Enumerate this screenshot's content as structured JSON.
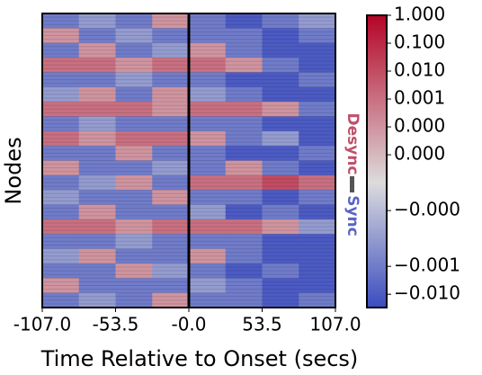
{
  "chart_data": {
    "type": "heatmap",
    "xlabel": "Time Relative to Onset (secs)",
    "ylabel": "Nodes",
    "annotations": [
      "Desync",
      "Sync"
    ],
    "xbins": [
      -107,
      -80.25,
      -53.5,
      -26.75,
      0,
      26.75,
      53.5,
      80.25,
      107
    ],
    "xlim": [
      -107,
      107
    ],
    "xticks": [
      {
        "value": -107,
        "label": "-107.0"
      },
      {
        "value": -53.5,
        "label": "-53.5"
      },
      {
        "value": 0,
        "label": "-0.0"
      },
      {
        "value": 53.5,
        "label": "53.5"
      },
      {
        "value": 107,
        "label": "107.0"
      }
    ],
    "onset": 0,
    "clim": [
      -0.03,
      1
    ],
    "symlog_linthresh": 1e-05,
    "cticks": [
      {
        "value": 1,
        "label": "1.000"
      },
      {
        "value": 0.1,
        "label": "0.100"
      },
      {
        "value": 0.01,
        "label": "0.010"
      },
      {
        "value": 0.001,
        "label": "0.001"
      },
      {
        "value": 0.0001,
        "label": "0.000"
      },
      {
        "value": 1e-05,
        "label": "0.000"
      },
      {
        "value": -1e-05,
        "label": "−0.000"
      },
      {
        "value": -0.001,
        "label": "−0.001"
      },
      {
        "value": -0.01,
        "label": "−0.010"
      }
    ],
    "colors": [
      "#3b4cc0",
      "#dcdcdc",
      "#b40426"
    ],
    "values": [
      [
        -0.001,
        -0.0001,
        -0.001,
        0.0001,
        -0.001,
        -0.01,
        -0.001,
        -0.0001
      ],
      [
        0.0001,
        -0.001,
        -0.0001,
        -0.001,
        -0.001,
        -0.001,
        -0.01,
        -0.001
      ],
      [
        -0.001,
        0.0001,
        -0.001,
        -0.0001,
        0.0001,
        -0.001,
        -0.01,
        -0.01
      ],
      [
        0.001,
        0.001,
        0.0001,
        0.001,
        0.001,
        0.0001,
        -0.001,
        -0.01
      ],
      [
        -0.001,
        -0.001,
        -0.0001,
        -0.001,
        -0.001,
        -0.01,
        -0.01,
        -0.001
      ],
      [
        -0.0001,
        0.0001,
        -0.001,
        0.0001,
        -0.0001,
        -0.001,
        -0.01,
        -0.01
      ],
      [
        0.001,
        0.001,
        0.001,
        0.0001,
        0.001,
        0.001,
        0.0001,
        -0.001
      ],
      [
        -0.001,
        -0.0001,
        -0.001,
        -0.001,
        -0.001,
        -0.001,
        -0.01,
        -0.01
      ],
      [
        0.001,
        0.0001,
        0.001,
        0.001,
        0.0001,
        -0.001,
        -0.0001,
        -0.01
      ],
      [
        -0.001,
        -0.001,
        0.0001,
        -0.001,
        -0.001,
        -0.01,
        -0.01,
        -0.001
      ],
      [
        0.0001,
        -0.001,
        -0.001,
        -0.0001,
        -0.001,
        0.0001,
        -0.001,
        -0.01
      ],
      [
        -0.001,
        -0.0001,
        0.0001,
        -0.001,
        0.001,
        0.001,
        0.01,
        0.001
      ],
      [
        -0.0001,
        -0.001,
        -0.001,
        0.0001,
        -0.001,
        -0.001,
        -0.01,
        -0.001
      ],
      [
        -0.001,
        0.0001,
        -0.001,
        -0.001,
        -0.0001,
        -0.01,
        -0.001,
        -0.01
      ],
      [
        0.001,
        0.001,
        0.0001,
        0.001,
        0.001,
        0.001,
        0.0001,
        -0.0001
      ],
      [
        -0.001,
        -0.001,
        -0.0001,
        -0.001,
        -0.001,
        -0.001,
        -0.01,
        -0.01
      ],
      [
        -0.0001,
        0.0001,
        -0.001,
        -0.001,
        0.0001,
        -0.001,
        -0.01,
        -0.01
      ],
      [
        -0.001,
        -0.001,
        0.0001,
        -0.0001,
        -0.001,
        -0.01,
        -0.001,
        -0.01
      ],
      [
        0.0001,
        -0.001,
        -0.001,
        -0.001,
        -0.0001,
        -0.001,
        -0.01,
        -0.01
      ],
      [
        -0.001,
        -0.0001,
        -0.001,
        0.0001,
        -0.001,
        -0.001,
        -0.01,
        -0.001
      ]
    ]
  }
}
